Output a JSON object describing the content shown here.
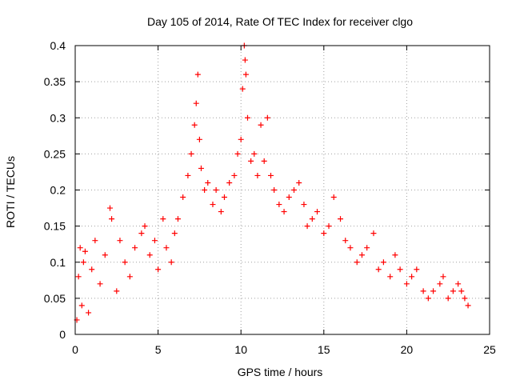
{
  "chart_data": {
    "type": "scatter",
    "title": "Day 105 of 2014, Rate Of TEC Index for receiver clgo",
    "xlabel": "GPS time / hours",
    "ylabel": "ROTI / TECUs",
    "xlim": [
      0,
      25
    ],
    "ylim": [
      0,
      0.4
    ],
    "x_ticks": [
      0,
      5,
      10,
      15,
      20,
      25
    ],
    "x_tick_labels": [
      "0",
      "5",
      "10",
      "15",
      "20",
      "25"
    ],
    "y_ticks": [
      0,
      0.05,
      0.1,
      0.15,
      0.2,
      0.25,
      0.3,
      0.35,
      0.4
    ],
    "y_tick_labels": [
      "0",
      "0.05",
      "0.1",
      "0.15",
      "0.2",
      "0.25",
      "0.3",
      "0.35",
      "0.4"
    ],
    "grid": true,
    "marker": "+",
    "color": "#ff0000",
    "series": [
      {
        "name": "ROTI",
        "points": [
          [
            0.1,
            0.02
          ],
          [
            0.2,
            0.08
          ],
          [
            0.3,
            0.12
          ],
          [
            0.4,
            0.04
          ],
          [
            0.5,
            0.1
          ],
          [
            0.6,
            0.115
          ],
          [
            0.8,
            0.03
          ],
          [
            1.0,
            0.09
          ],
          [
            1.2,
            0.13
          ],
          [
            1.5,
            0.07
          ],
          [
            1.8,
            0.11
          ],
          [
            2.1,
            0.175
          ],
          [
            2.2,
            0.16
          ],
          [
            2.5,
            0.06
          ],
          [
            2.7,
            0.13
          ],
          [
            3.0,
            0.1
          ],
          [
            3.3,
            0.08
          ],
          [
            3.6,
            0.12
          ],
          [
            4.0,
            0.14
          ],
          [
            4.2,
            0.15
          ],
          [
            4.5,
            0.11
          ],
          [
            4.8,
            0.13
          ],
          [
            5.0,
            0.09
          ],
          [
            5.3,
            0.16
          ],
          [
            5.5,
            0.12
          ],
          [
            5.8,
            0.1
          ],
          [
            6.0,
            0.14
          ],
          [
            6.2,
            0.16
          ],
          [
            6.5,
            0.19
          ],
          [
            6.8,
            0.22
          ],
          [
            7.0,
            0.25
          ],
          [
            7.2,
            0.29
          ],
          [
            7.3,
            0.32
          ],
          [
            7.4,
            0.36
          ],
          [
            7.5,
            0.27
          ],
          [
            7.6,
            0.23
          ],
          [
            7.8,
            0.2
          ],
          [
            8.0,
            0.21
          ],
          [
            8.3,
            0.18
          ],
          [
            8.5,
            0.2
          ],
          [
            8.8,
            0.17
          ],
          [
            9.0,
            0.19
          ],
          [
            9.3,
            0.21
          ],
          [
            9.6,
            0.22
          ],
          [
            9.8,
            0.25
          ],
          [
            10.0,
            0.27
          ],
          [
            10.1,
            0.34
          ],
          [
            10.2,
            0.4
          ],
          [
            10.25,
            0.38
          ],
          [
            10.3,
            0.36
          ],
          [
            10.4,
            0.3
          ],
          [
            10.6,
            0.24
          ],
          [
            10.8,
            0.25
          ],
          [
            11.0,
            0.22
          ],
          [
            11.2,
            0.29
          ],
          [
            11.4,
            0.24
          ],
          [
            11.6,
            0.3
          ],
          [
            11.8,
            0.22
          ],
          [
            12.0,
            0.2
          ],
          [
            12.3,
            0.18
          ],
          [
            12.6,
            0.17
          ],
          [
            12.9,
            0.19
          ],
          [
            13.2,
            0.2
          ],
          [
            13.5,
            0.21
          ],
          [
            13.8,
            0.18
          ],
          [
            14.0,
            0.15
          ],
          [
            14.3,
            0.16
          ],
          [
            14.6,
            0.17
          ],
          [
            15.0,
            0.14
          ],
          [
            15.3,
            0.15
          ],
          [
            15.6,
            0.19
          ],
          [
            16.0,
            0.16
          ],
          [
            16.3,
            0.13
          ],
          [
            16.6,
            0.12
          ],
          [
            17.0,
            0.1
          ],
          [
            17.3,
            0.11
          ],
          [
            17.6,
            0.12
          ],
          [
            18.0,
            0.14
          ],
          [
            18.3,
            0.09
          ],
          [
            18.6,
            0.1
          ],
          [
            19.0,
            0.08
          ],
          [
            19.3,
            0.11
          ],
          [
            19.6,
            0.09
          ],
          [
            20.0,
            0.07
          ],
          [
            20.3,
            0.08
          ],
          [
            20.6,
            0.09
          ],
          [
            21.0,
            0.06
          ],
          [
            21.3,
            0.05
          ],
          [
            21.6,
            0.06
          ],
          [
            22.0,
            0.07
          ],
          [
            22.2,
            0.08
          ],
          [
            22.5,
            0.05
          ],
          [
            22.8,
            0.06
          ],
          [
            23.1,
            0.07
          ],
          [
            23.3,
            0.06
          ],
          [
            23.5,
            0.05
          ],
          [
            23.7,
            0.04
          ]
        ]
      }
    ]
  }
}
